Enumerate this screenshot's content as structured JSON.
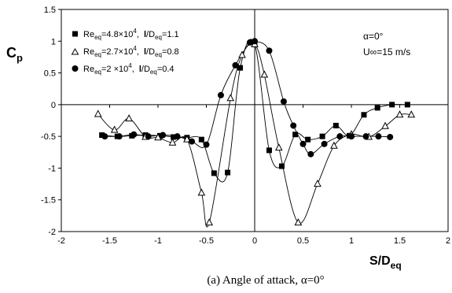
{
  "chart_data": {
    "type": "scatter",
    "xlabel": "S/D",
    "xlabel_sub": "eq",
    "ylabel": "C",
    "ylabel_sub": "p",
    "xlim": [
      -2,
      2
    ],
    "ylim": [
      -2,
      1.5
    ],
    "xticks": [
      -2,
      -1.5,
      -1,
      -0.5,
      0,
      0.5,
      1,
      1.5,
      2
    ],
    "yticks": [
      -2,
      -1.5,
      -1,
      -0.5,
      0,
      0.5,
      1,
      1.5
    ],
    "xtick_labels": [
      "-2",
      "-1.5",
      "-1",
      "-0.5",
      "0",
      "0.5",
      "1",
      "1.5",
      "2"
    ],
    "ytick_labels": [
      "-2",
      "-1.5",
      "-1",
      "-0.5",
      "0",
      "0.5",
      "1",
      "1.5"
    ],
    "grid": false,
    "legend_position": "top-left",
    "annotations": [
      {
        "text": "α=0°"
      },
      {
        "text": "U∞=15 m/s"
      }
    ],
    "caption": "(a) Angle of attack, α=0°",
    "series": [
      {
        "marker": "square-filled",
        "legend": {
          "re": "Re",
          "re_sub": "eq",
          "re_val": "=4.8×10",
          "re_exp": "4",
          "sep": ",  ",
          "l": "l",
          "l_rest": "/D",
          "l_sub": "eq",
          "l_val": "=1.1"
        },
        "x": [
          -1.58,
          -1.42,
          -1.27,
          -1.13,
          -0.98,
          -0.84,
          -0.7,
          -0.55,
          -0.42,
          -0.28,
          -0.15,
          0.0,
          0.15,
          0.28,
          0.42,
          0.55,
          0.7,
          0.84,
          0.98,
          1.13,
          1.27,
          1.42,
          1.58
        ],
        "y": [
          -0.48,
          -0.5,
          -0.49,
          -0.48,
          -0.49,
          -0.51,
          -0.52,
          -0.55,
          -1.08,
          -1.07,
          0.58,
          0.95,
          -0.72,
          -0.97,
          -0.47,
          -0.55,
          -0.5,
          -0.33,
          -0.49,
          -0.16,
          -0.05,
          0.0,
          0.0
        ]
      },
      {
        "marker": "triangle-open",
        "legend": {
          "re": "Re",
          "re_sub": "eq",
          "re_val": "=2.7×10",
          "re_exp": "4",
          "sep": ",  ",
          "l": "l",
          "l_rest": "/D",
          "l_sub": "eq",
          "l_val": "=0.8"
        },
        "x": [
          -1.62,
          -1.45,
          -1.3,
          -1.13,
          -1.0,
          -0.85,
          -0.7,
          -0.55,
          -0.47,
          -0.25,
          -0.13,
          0.0,
          0.1,
          0.25,
          0.45,
          0.65,
          0.82,
          1.0,
          1.18,
          1.35,
          1.5,
          1.62
        ],
        "y": [
          -0.15,
          -0.4,
          -0.22,
          -0.51,
          -0.52,
          -0.6,
          -0.55,
          -1.39,
          -1.86,
          0.1,
          0.78,
          0.95,
          0.47,
          -0.68,
          -1.86,
          -1.25,
          -0.65,
          -0.47,
          -0.51,
          -0.34,
          -0.16,
          -0.16
        ]
      },
      {
        "marker": "circle-filled",
        "legend": {
          "re": "Re",
          "re_sub": "eq",
          "re_val": "=2 ×10",
          "re_exp": "4",
          "sep": ",  ",
          "l": "l",
          "l_rest": "/D",
          "l_sub": "eq",
          "l_val": "=0.4"
        },
        "x": [
          -1.55,
          -1.4,
          -1.25,
          -1.1,
          -0.95,
          -0.8,
          -0.65,
          -0.5,
          -0.35,
          -0.2,
          -0.05,
          0.0,
          0.15,
          0.3,
          0.4,
          0.5,
          0.58,
          0.72,
          0.88,
          1.0,
          1.15,
          1.28,
          1.4
        ],
        "y": [
          -0.5,
          -0.5,
          -0.47,
          -0.5,
          -0.48,
          -0.5,
          -0.58,
          -0.63,
          0.15,
          0.62,
          0.98,
          1.0,
          0.85,
          0.05,
          -0.33,
          -0.62,
          -0.78,
          -0.62,
          -0.5,
          -0.5,
          -0.5,
          -0.5,
          -0.51
        ]
      }
    ]
  }
}
